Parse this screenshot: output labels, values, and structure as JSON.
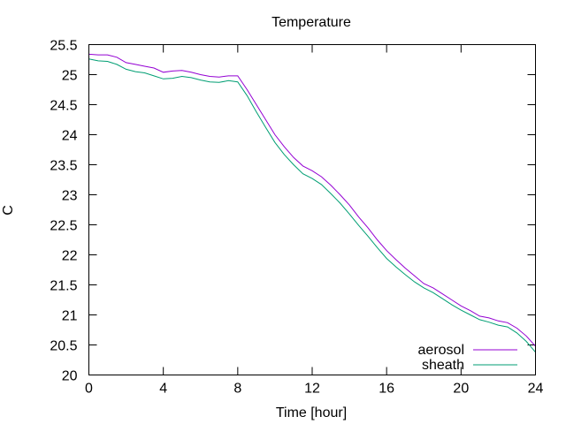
{
  "chart_data": {
    "type": "line",
    "title": "Temperature",
    "xlabel": "Time [hour]",
    "ylabel": "C",
    "xlim": [
      0,
      24
    ],
    "ylim": [
      20,
      25.5
    ],
    "x_ticks": [
      0,
      4,
      8,
      12,
      16,
      20,
      24
    ],
    "y_ticks": [
      20,
      20.5,
      21,
      21.5,
      22,
      22.5,
      23,
      23.5,
      24,
      24.5,
      25,
      25.5
    ],
    "grid": false,
    "legend_position": "bottom-right",
    "series": [
      {
        "name": "aerosol",
        "color": "#9400d3",
        "x": [
          0,
          0.5,
          1,
          1.5,
          2,
          2.5,
          3,
          3.5,
          4,
          4.5,
          5,
          5.5,
          6,
          6.5,
          7,
          7.5,
          8,
          8.5,
          9,
          9.5,
          10,
          10.5,
          11,
          11.5,
          12,
          12.5,
          13,
          13.5,
          14,
          14.5,
          15,
          15.5,
          16,
          16.5,
          17,
          17.5,
          18,
          18.5,
          19,
          19.5,
          20,
          20.5,
          21,
          21.5,
          22,
          22.5,
          23,
          23.5,
          24
        ],
        "y": [
          25.34,
          25.33,
          25.33,
          25.29,
          25.2,
          25.17,
          25.14,
          25.11,
          25.04,
          25.06,
          25.07,
          25.04,
          25.0,
          24.97,
          24.96,
          24.98,
          24.98,
          24.75,
          24.5,
          24.25,
          24.0,
          23.8,
          23.62,
          23.48,
          23.4,
          23.3,
          23.16,
          23.0,
          22.83,
          22.63,
          22.45,
          22.25,
          22.07,
          21.92,
          21.78,
          21.65,
          21.52,
          21.45,
          21.35,
          21.25,
          21.15,
          21.07,
          20.98,
          20.95,
          20.9,
          20.87,
          20.78,
          20.65,
          20.48
        ]
      },
      {
        "name": "sheath",
        "color": "#009e73",
        "x": [
          0,
          0.5,
          1,
          1.5,
          2,
          2.5,
          3,
          3.5,
          4,
          4.5,
          5,
          5.5,
          6,
          6.5,
          7,
          7.5,
          8,
          8.5,
          9,
          9.5,
          10,
          10.5,
          11,
          11.5,
          12,
          12.5,
          13,
          13.5,
          14,
          14.5,
          15,
          15.5,
          16,
          16.5,
          17,
          17.5,
          18,
          18.5,
          19,
          19.5,
          20,
          20.5,
          21,
          21.5,
          22,
          22.5,
          23,
          23.5,
          24
        ],
        "y": [
          25.26,
          25.23,
          25.22,
          25.17,
          25.09,
          25.05,
          25.03,
          24.98,
          24.93,
          24.94,
          24.97,
          24.95,
          24.91,
          24.88,
          24.87,
          24.9,
          24.88,
          24.65,
          24.38,
          24.12,
          23.87,
          23.67,
          23.5,
          23.35,
          23.27,
          23.17,
          23.02,
          22.86,
          22.68,
          22.49,
          22.31,
          22.12,
          21.94,
          21.8,
          21.67,
          21.55,
          21.45,
          21.37,
          21.27,
          21.17,
          21.08,
          21.0,
          20.92,
          20.88,
          20.83,
          20.8,
          20.7,
          20.56,
          20.38
        ]
      }
    ]
  }
}
